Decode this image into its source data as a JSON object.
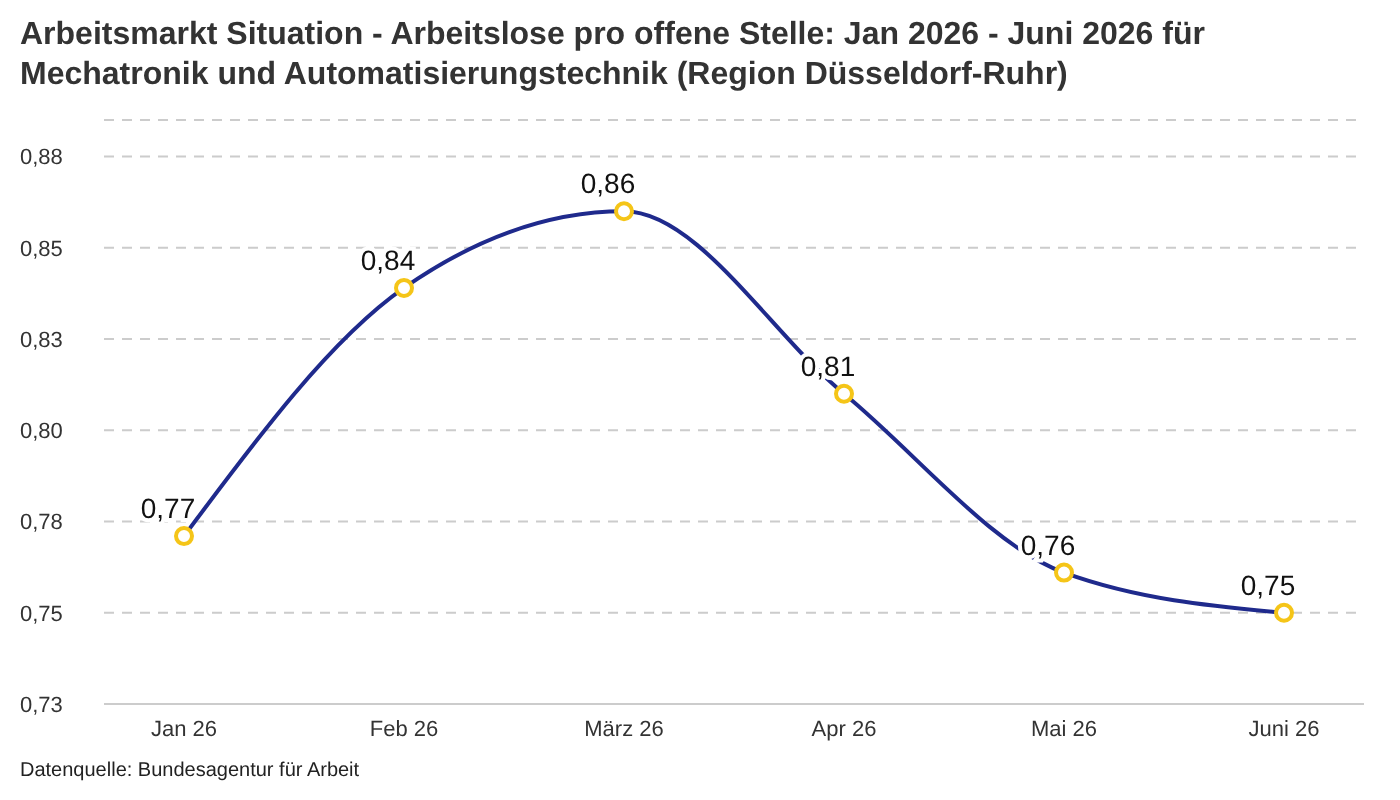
{
  "chart_data": {
    "type": "line",
    "title": "Arbeitsmarkt Situation - Arbeitslose pro offene Stelle: Jan 2026 - Juni 2026 für Mechatronik und Automatisierungstechnik (Region Düsseldorf-Ruhr)",
    "categories": [
      "Jan 26",
      "Feb 26",
      "März 26",
      "Apr 26",
      "Mai 26",
      "Juni 26"
    ],
    "series": [
      {
        "color": "#1f2a8c",
        "values": [
          0.771,
          0.839,
          0.86,
          0.81,
          0.761,
          0.75
        ],
        "value_labels": [
          "0,77",
          "0,84",
          "0,86",
          "0,81",
          "0,76",
          "0,75"
        ]
      }
    ],
    "ylim": [
      0.725,
      0.885
    ],
    "yticks": [
      {
        "value": 0.725,
        "label": "0,73"
      },
      {
        "value": 0.75,
        "label": "0,75"
      },
      {
        "value": 0.775,
        "label": "0,78"
      },
      {
        "value": 0.8,
        "label": "0,80"
      },
      {
        "value": 0.825,
        "label": "0,83"
      },
      {
        "value": 0.85,
        "label": "0,85"
      },
      {
        "value": 0.875,
        "label": "0,88"
      }
    ],
    "grid": "y",
    "marker": "circle",
    "line_style": "solid",
    "legend": false,
    "annotations": [
      "Datenquelle: Bundesagentur für Arbeit"
    ]
  }
}
